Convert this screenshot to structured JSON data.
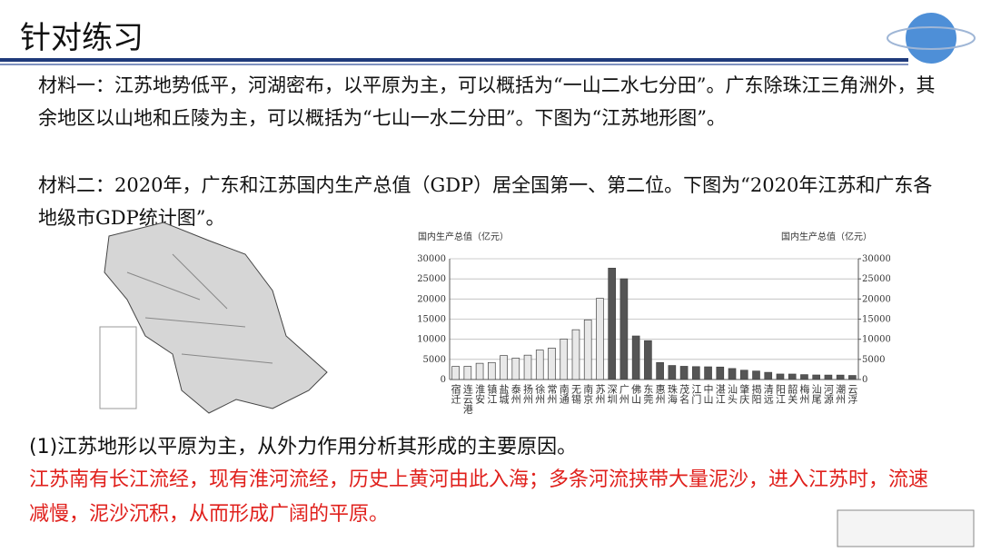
{
  "header": {
    "title": "针对练习"
  },
  "materials": [
    "材料一：江苏地势低平，河湖密布，以平原为主，可以概括为“一山二水七分田”。广东除珠江三角洲外，其余地区以山地和丘陵为主，可以概括为“七山一水二分田”。下图为“江苏地形图”。",
    "材料二：2020年，广东和江苏国内生产总值（GDP）居全国第一、第二位。下图为“2020年江苏和广东各地级市GDP统计图”。"
  ],
  "chart_data": {
    "type": "bar",
    "y_label": "国内生产总值（亿元）",
    "y2_label": "国内生产总值（亿元）",
    "categories": [
      "宿迁",
      "连云港",
      "淮安",
      "镇江",
      "盐城",
      "泰州",
      "扬州",
      "徐州",
      "常州",
      "南通",
      "无锡",
      "南京",
      "苏州",
      "深圳",
      "广州",
      "佛山",
      "东莞",
      "惠州",
      "珠海",
      "茂名",
      "江门",
      "中山",
      "湛江",
      "汕头",
      "肇庆",
      "揭阳",
      "清远",
      "阳江",
      "韶关",
      "梅州",
      "汕尾",
      "河源",
      "潮州",
      "云浮"
    ],
    "series": [
      {
        "color": "#e8e8e8",
        "values": [
          3262,
          3277,
          4025,
          4220,
          5953,
          5313,
          6048,
          7320,
          7805,
          10036,
          12370,
          14818,
          20170,
          null,
          null,
          null,
          null,
          null,
          null,
          null,
          null,
          null,
          null,
          null,
          null,
          null,
          null,
          null,
          null,
          null,
          null,
          null,
          null,
          null
        ]
      },
      {
        "color": "#555555",
        "values": [
          null,
          null,
          null,
          null,
          null,
          null,
          null,
          null,
          null,
          null,
          null,
          null,
          null,
          27670,
          25019,
          10816,
          9650,
          4222,
          3482,
          3280,
          3201,
          3152,
          3100,
          2730,
          2312,
          2102,
          1777,
          1360,
          1353,
          1208,
          1123,
          1102,
          1097,
          1002
        ]
      }
    ],
    "ylim": [
      0,
      30000
    ],
    "yticks": [
      0,
      5000,
      10000,
      15000,
      20000,
      25000,
      30000
    ],
    "y2lim": [
      0,
      30000
    ],
    "y2ticks": [
      0,
      5000,
      10000,
      15000,
      20000,
      25000,
      30000
    ],
    "grid": true
  },
  "question": "(1)江苏地形以平原为主，从外力作用分析其形成的主要原因。",
  "answer": "江苏南有长江流经，现有淮河流经，历史上黄河由此入海；多条河流挟带大量泥沙，进入江苏时，流速减慢，泥沙沉积，从而形成广阔的平原。"
}
